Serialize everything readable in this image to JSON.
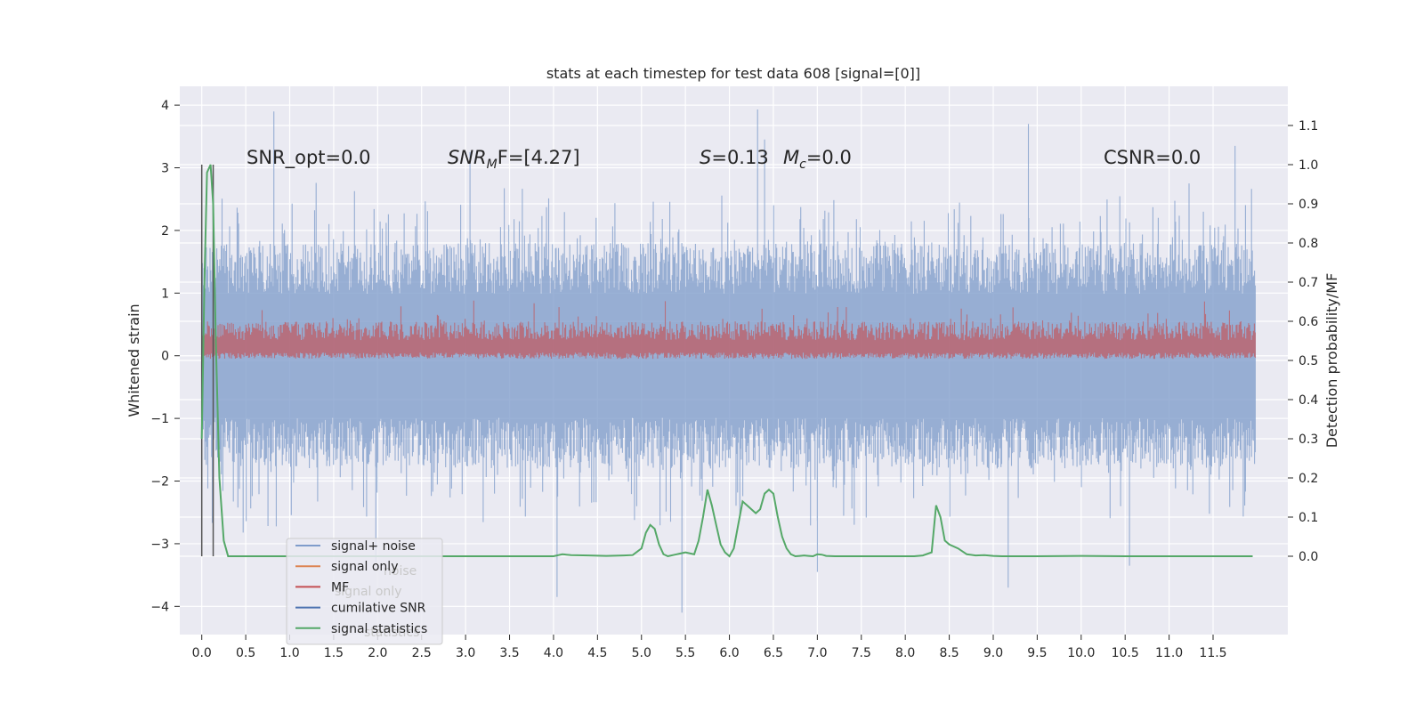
{
  "chart_data": {
    "type": "line",
    "title": "stats at each timestep for test data 608 [signal=[0]]",
    "ylabel_left": "Whitened strain",
    "ylabel_right": "Detection probability/MF",
    "xlim": [
      -0.25,
      12.35
    ],
    "ylim_left": [
      -4.45,
      4.3
    ],
    "ylim_right": [
      -0.2,
      1.2
    ],
    "x_ticks": [
      0.0,
      0.5,
      1.0,
      1.5,
      2.0,
      2.5,
      3.0,
      3.5,
      4.0,
      4.5,
      5.0,
      5.5,
      6.0,
      6.5,
      7.0,
      7.5,
      8.0,
      8.5,
      9.0,
      9.5,
      10.0,
      10.5,
      11.0,
      11.5
    ],
    "x_tick_labels": [
      "0.0",
      "0.5",
      "1.0",
      "1.5",
      "2.0",
      "2.5",
      "3.0",
      "3.5",
      "4.0",
      "4.5",
      "5.0",
      "5.5",
      "6.0",
      "6.5",
      "7.0",
      "7.5",
      "8.0",
      "8.5",
      "9.0",
      "9.5",
      "10.0",
      "10.5",
      "11.0",
      "11.5"
    ],
    "y_ticks_left": [
      -4,
      -3,
      -2,
      -1,
      0,
      1,
      2,
      3,
      4
    ],
    "y_tick_labels_left": [
      "−4",
      "−3",
      "−2",
      "−1",
      "0",
      "1",
      "2",
      "3",
      "4"
    ],
    "y_ticks_right": [
      0.0,
      0.1,
      0.2,
      0.3,
      0.4,
      0.5,
      0.6,
      0.7,
      0.8,
      0.9,
      1.0,
      1.1
    ],
    "y_tick_labels_right": [
      "0.0",
      "0.1",
      "0.2",
      "0.3",
      "0.4",
      "0.5",
      "0.6",
      "0.7",
      "0.8",
      "0.9",
      "1.0",
      "1.1"
    ],
    "grid": true,
    "legend_placement": "lower-left",
    "annotations": {
      "snr_opt": "SNR_opt=0.0",
      "snr_mf_name": "SNR",
      "snr_mf_sub": "M",
      "snr_mf_rest": "F=[4.27]",
      "s_name": "S",
      "s_value": "=0.13",
      "mc_name": "M",
      "mc_sub": "c",
      "mc_value": "=0.0",
      "csnr": "CSNR=0.0"
    },
    "legend": [
      {
        "label": "signal+ noise",
        "color": "#7f9ccb"
      },
      {
        "label": "signal only",
        "color": "#dd8452"
      },
      {
        "label": "MF",
        "color": "#c44e52"
      },
      {
        "label": "cumilative SNR",
        "color": "#4c72b0"
      },
      {
        "label": "signal statistics",
        "color": "#55a868"
      }
    ],
    "legend_ghost_text": [
      "noise",
      "signal only",
      "statistics"
    ],
    "series": [
      {
        "name": "signal+ noise",
        "axis": "left",
        "color": "#7f9ccb",
        "description_x_range": [
          0.0,
          11.98
        ],
        "envelope_upper_typical": 1.8,
        "envelope_lower_typical": -1.8,
        "peaks": [
          [
            0.82,
            3.9
          ],
          [
            3.05,
            3.25
          ],
          [
            6.32,
            3.93
          ],
          [
            6.4,
            3.45
          ],
          [
            9.4,
            3.7
          ],
          [
            11.75,
            3.35
          ],
          [
            5.46,
            -4.1
          ],
          [
            4.04,
            -3.85
          ],
          [
            9.17,
            -3.7
          ],
          [
            10.55,
            -3.35
          ],
          [
            7.0,
            -3.45
          ],
          [
            1.98,
            -3.3
          ]
        ]
      },
      {
        "name": "MF",
        "axis": "left",
        "color": "#c44e52",
        "band": [
          -0.05,
          0.55
        ],
        "peaks_upper": [
          0.75,
          0.85,
          1.0,
          0.85,
          0.8
        ],
        "peaks_lower": [
          -0.05
        ]
      },
      {
        "name": "signal statistics",
        "axis": "right",
        "color": "#55a868",
        "x": [
          0.0,
          0.03,
          0.06,
          0.1,
          0.13,
          0.16,
          0.2,
          0.25,
          0.3,
          0.5,
          1.0,
          2.0,
          3.0,
          4.0,
          4.1,
          4.2,
          4.4,
          4.6,
          4.8,
          4.9,
          5.0,
          5.05,
          5.1,
          5.15,
          5.2,
          5.25,
          5.3,
          5.4,
          5.5,
          5.6,
          5.65,
          5.7,
          5.75,
          5.8,
          5.85,
          5.9,
          5.95,
          6.0,
          6.05,
          6.1,
          6.15,
          6.2,
          6.25,
          6.3,
          6.35,
          6.4,
          6.45,
          6.5,
          6.55,
          6.6,
          6.65,
          6.7,
          6.75,
          6.8,
          6.85,
          6.9,
          6.95,
          7.0,
          7.05,
          7.1,
          7.2,
          7.4,
          7.6,
          7.8,
          8.0,
          8.1,
          8.2,
          8.3,
          8.35,
          8.4,
          8.45,
          8.5,
          8.6,
          8.7,
          8.8,
          8.9,
          9.0,
          9.1,
          9.5,
          10.0,
          10.5,
          11.0,
          11.5,
          11.95
        ],
        "y": [
          0.3,
          0.7,
          0.98,
          1.0,
          0.9,
          0.55,
          0.2,
          0.04,
          0.0,
          0.0,
          0.0,
          0.0,
          0.0,
          0.0,
          0.005,
          0.003,
          0.002,
          0.001,
          0.002,
          0.003,
          0.02,
          0.06,
          0.08,
          0.07,
          0.03,
          0.005,
          0.0,
          0.005,
          0.01,
          0.005,
          0.04,
          0.1,
          0.17,
          0.13,
          0.08,
          0.03,
          0.01,
          0.0,
          0.02,
          0.08,
          0.14,
          0.13,
          0.12,
          0.11,
          0.12,
          0.16,
          0.17,
          0.16,
          0.1,
          0.05,
          0.02,
          0.005,
          0.0,
          0.001,
          0.002,
          0.001,
          0.0,
          0.005,
          0.004,
          0.001,
          0.0,
          0.0,
          0.0,
          0.0,
          0.0,
          0.0,
          0.002,
          0.01,
          0.13,
          0.1,
          0.04,
          0.03,
          0.02,
          0.005,
          0.002,
          0.003,
          0.001,
          0.0,
          0.0,
          0.001,
          0.0,
          0.0,
          0.0,
          0.0
        ]
      }
    ],
    "vertical_lines": [
      {
        "x": 0.0,
        "y_range": [
          -3.2,
          3.05
        ],
        "color": "#555555"
      },
      {
        "x": 0.13,
        "y_range": [
          -3.2,
          3.05
        ],
        "color": "#555555"
      }
    ]
  }
}
